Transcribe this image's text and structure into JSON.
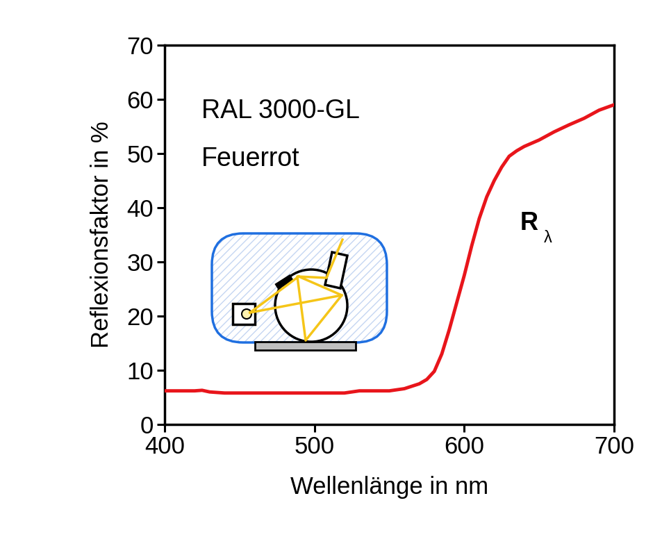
{
  "chart_data": {
    "type": "line",
    "annotations": [
      "RAL 3000-GL",
      "Feuerrot"
    ],
    "series_label": {
      "text": "R",
      "subscript": "λ"
    },
    "x_label": "Wellenlänge in nm",
    "y_label": "Reflexionsfaktor in %",
    "x": [
      400,
      410,
      420,
      425,
      430,
      440,
      450,
      460,
      470,
      480,
      490,
      500,
      510,
      520,
      530,
      540,
      550,
      560,
      570,
      575,
      580,
      585,
      590,
      595,
      600,
      605,
      610,
      615,
      620,
      625,
      630,
      635,
      640,
      650,
      660,
      670,
      680,
      690,
      700
    ],
    "values": [
      6.2,
      6.2,
      6.2,
      6.3,
      6.0,
      5.8,
      5.8,
      5.8,
      5.8,
      5.8,
      5.8,
      5.8,
      5.8,
      5.8,
      6.2,
      6.2,
      6.2,
      6.6,
      7.5,
      8.3,
      9.8,
      13.0,
      17.5,
      22.5,
      27.5,
      33.0,
      38.0,
      42.0,
      45.0,
      47.5,
      49.5,
      50.5,
      51.3,
      52.5,
      54.0,
      55.3,
      56.5,
      58.0,
      59.0
    ],
    "color": "#e8151b",
    "xlim": [
      400,
      700
    ],
    "ylim": [
      0,
      70
    ],
    "xticks": [
      400,
      500,
      600,
      700
    ],
    "yticks": [
      0,
      10,
      20,
      30,
      40,
      50,
      60,
      70
    ],
    "grid": false
  }
}
